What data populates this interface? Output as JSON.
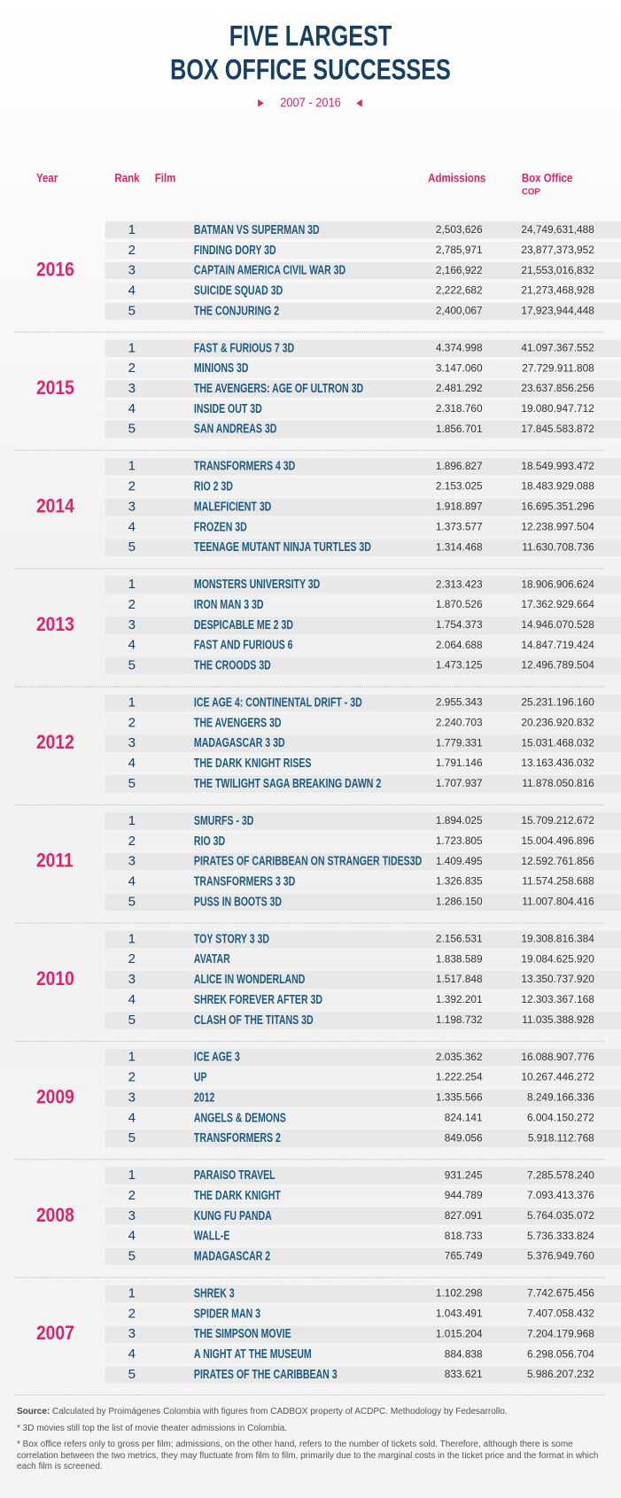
{
  "header": {
    "title": [
      "FIVE LARGEST",
      "BOX OFFICE SUCCESSES"
    ],
    "subtitle": "2007 - 2016"
  },
  "table": {
    "columns": [
      "Year",
      "Rank",
      "Film",
      "Admissions",
      "Box Office"
    ],
    "currency": "COP",
    "groups": [
      {
        "year": "2016",
        "rows": [
          [
            "1",
            "BATMAN VS SUPERMAN 3D",
            "2,503,626",
            "24,749,631,488"
          ],
          [
            "2",
            "FINDING DORY 3D",
            "2,785,971",
            "23,877,373,952"
          ],
          [
            "3",
            "CAPTAIN AMERICA CIVIL WAR 3D",
            "2,166,922",
            "21,553,016,832"
          ],
          [
            "4",
            "SUICIDE SQUAD 3D",
            "2,222,682",
            "21,273,468,928"
          ],
          [
            "5",
            "THE CONJURING 2",
            "2,400,067",
            "17,923,944,448"
          ]
        ]
      },
      {
        "year": "2015",
        "rows": [
          [
            "1",
            "FAST & FURIOUS 7 3D",
            "4.374.998",
            "41.097.367.552"
          ],
          [
            "2",
            "MINIONS 3D",
            "3.147.060",
            "27.729.911.808"
          ],
          [
            "3",
            "THE AVENGERS: AGE OF ULTRON 3D",
            "2.481.292",
            "23.637.856.256"
          ],
          [
            "4",
            "INSIDE OUT 3D",
            "2.318.760",
            "19.080.947.712"
          ],
          [
            "5",
            "SAN ANDREAS 3D",
            "1.856.701",
            "17.845.583.872"
          ]
        ]
      },
      {
        "year": "2014",
        "rows": [
          [
            "1",
            "TRANSFORMERS 4 3D",
            "1.896.827",
            "18.549.993.472"
          ],
          [
            "2",
            "RIO 2 3D",
            "2.153.025",
            "18.483.929.088"
          ],
          [
            "3",
            "MALEFICIENT 3D",
            "1.918.897",
            "16.695.351.296"
          ],
          [
            "4",
            "FROZEN 3D",
            "1.373.577",
            "12.238.997.504"
          ],
          [
            "5",
            "TEENAGE MUTANT NINJA TURTLES 3D",
            "1.314.468",
            "11.630.708.736"
          ]
        ]
      },
      {
        "year": "2013",
        "rows": [
          [
            "1",
            "MONSTERS UNIVERSITY 3D",
            "2.313.423",
            "18.906.906.624"
          ],
          [
            "2",
            "IRON MAN 3 3D",
            "1.870.526",
            "17.362.929.664"
          ],
          [
            "3",
            "DESPICABLE ME 2 3D",
            "1.754.373",
            "14.946.070.528"
          ],
          [
            "4",
            "FAST AND FURIOUS 6",
            "2.064.688",
            "14.847.719.424"
          ],
          [
            "5",
            "THE CROODS 3D",
            "1.473.125",
            "12.496.789.504"
          ]
        ]
      },
      {
        "year": "2012",
        "rows": [
          [
            "1",
            "ICE AGE 4: CONTINENTAL DRIFT - 3D",
            "2.955.343",
            "25.231.196.160"
          ],
          [
            "2",
            "THE AVENGERS 3D",
            "2.240.703",
            "20.236.920.832"
          ],
          [
            "3",
            "MADAGASCAR 3 3D",
            "1.779.331",
            "15.031.468.032"
          ],
          [
            "4",
            "THE DARK KNIGHT RISES",
            "1.791.146",
            "13.163.436.032"
          ],
          [
            "5",
            "THE TWILIGHT SAGA BREAKING DAWN 2",
            "1.707.937",
            "11.878.050.816"
          ]
        ]
      },
      {
        "year": "2011",
        "rows": [
          [
            "1",
            "SMURFS - 3D",
            "1.894.025",
            "15.709.212.672"
          ],
          [
            "2",
            "RIO 3D",
            "1.723.805",
            "15.004.496.896"
          ],
          [
            "3",
            "PIRATES OF CARIBBEAN ON STRANGER TIDES3D",
            "1.409.495",
            "12.592.761.856"
          ],
          [
            "4",
            "TRANSFORMERS 3 3D",
            "1.326.835",
            "11.574.258.688"
          ],
          [
            "5",
            "PUSS IN BOOTS 3D",
            "1.286.150",
            "11.007.804.416"
          ]
        ]
      },
      {
        "year": "2010",
        "rows": [
          [
            "1",
            "TOY STORY 3 3D",
            "2.156.531",
            "19.308.816.384"
          ],
          [
            "2",
            "AVATAR",
            "1.838.589",
            "19.084.625.920"
          ],
          [
            "3",
            "ALICE IN WONDERLAND",
            "1.517.848",
            "13.350.737.920"
          ],
          [
            "4",
            "SHREK FOREVER AFTER 3D",
            "1.392.201",
            "12.303.367.168"
          ],
          [
            "5",
            "CLASH OF THE TITANS 3D",
            "1.198.732",
            "11.035.388.928"
          ]
        ]
      },
      {
        "year": "2009",
        "rows": [
          [
            "1",
            "ICE AGE 3",
            "2.035.362",
            "16.088.907.776"
          ],
          [
            "2",
            "UP",
            "1.222.254",
            "10.267.446.272"
          ],
          [
            "3",
            "2012",
            "1.335.566",
            "8.249.166.336"
          ],
          [
            "4",
            "ANGELS & DEMONS",
            "824.141",
            "6.004.150.272"
          ],
          [
            "5",
            "TRANSFORMERS 2",
            "849.056",
            "5.918.112.768"
          ]
        ]
      },
      {
        "year": "2008",
        "rows": [
          [
            "1",
            "PARAISO TRAVEL",
            "931.245",
            "7.285.578.240"
          ],
          [
            "2",
            "THE DARK KNIGHT",
            "944.789",
            "7.093.413.376"
          ],
          [
            "3",
            "KUNG FU PANDA",
            "827.091",
            "5.764.035.072"
          ],
          [
            "4",
            "WALL-E",
            "818.733",
            "5.736.333.824"
          ],
          [
            "5",
            "MADAGASCAR 2",
            "765.749",
            "5.376.949.760"
          ]
        ]
      },
      {
        "year": "2007",
        "rows": [
          [
            "1",
            "SHREK 3",
            "1.102.298",
            "7.742.675.456"
          ],
          [
            "2",
            "SPIDER MAN 3",
            "1.043.491",
            "7.407.058.432"
          ],
          [
            "3",
            "THE SIMPSON MOVIE",
            "1.015.204",
            "7.204.179.968"
          ],
          [
            "4",
            "A NIGHT AT THE MUSEUM",
            "884.838",
            "6.298.056.704"
          ],
          [
            "5",
            "PIRATES OF THE CARIBBEAN 3",
            "833.621",
            "5.986.207.232"
          ]
        ]
      }
    ]
  },
  "footer": {
    "source_label": "Source:",
    "source": "Calculated by Proimágenes Colombia with figures from CADBOX property of ACDPC. Methodology by Fedesarrollo.",
    "notes": [
      "* 3D movies still top the list of movie theater admissions in Colombia.",
      "* Box office refers only to gross per film; admissions, on the other hand, refers to the number of tickets sold. Therefore, although there is some correlation between the two metrics, they may fluctuate from film to film, primarily due to the marginal costs in the ticket price and the format in which each film is screened."
    ]
  }
}
